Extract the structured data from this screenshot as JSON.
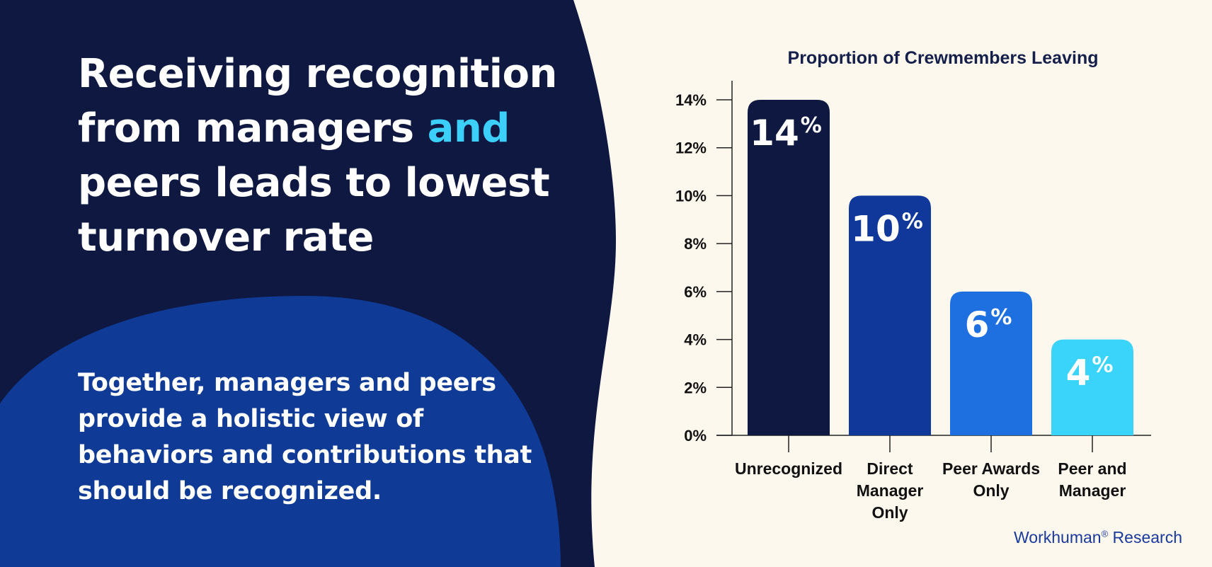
{
  "headline": {
    "part1": "Receiving recognition from managers ",
    "accent": "and",
    "part2": " peers leads to lowest turnover rate"
  },
  "subtext": "Together, managers and peers provide a holistic view of behaviors and contributions that should be recognized.",
  "credit": {
    "brand": "Workhuman",
    "mark": "®",
    "suffix": " Research"
  },
  "colors": {
    "navy": "#0e1840",
    "blue_blob": "#0f3a96",
    "accent": "#3ccffa",
    "cream": "#fdf8ee"
  },
  "chart_data": {
    "type": "bar",
    "title": "Proportion of Crewmembers Leaving",
    "categories": [
      "Unrecognized",
      "Direct Manager Only",
      "Peer Awards Only",
      "Peer and Manager"
    ],
    "category_lines": [
      [
        "Unrecognized"
      ],
      [
        "Direct",
        "Manager",
        "Only"
      ],
      [
        "Peer Awards",
        "Only"
      ],
      [
        "Peer and",
        "Manager"
      ]
    ],
    "values": [
      14,
      10,
      6,
      4
    ],
    "data_labels": [
      "14",
      "10",
      "6",
      "4"
    ],
    "data_label_suffix": "%",
    "bar_colors": [
      "#0e1840",
      "#10389a",
      "#1e6fe0",
      "#3ad4fb"
    ],
    "ylim": [
      0,
      14
    ],
    "yticks": [
      0,
      2,
      4,
      6,
      8,
      10,
      12,
      14
    ],
    "ytick_labels": [
      "0%",
      "2%",
      "4%",
      "6%",
      "8%",
      "10%",
      "12%",
      "14%"
    ],
    "xlabel": "",
    "ylabel": "",
    "grid": false,
    "legend": "none"
  }
}
